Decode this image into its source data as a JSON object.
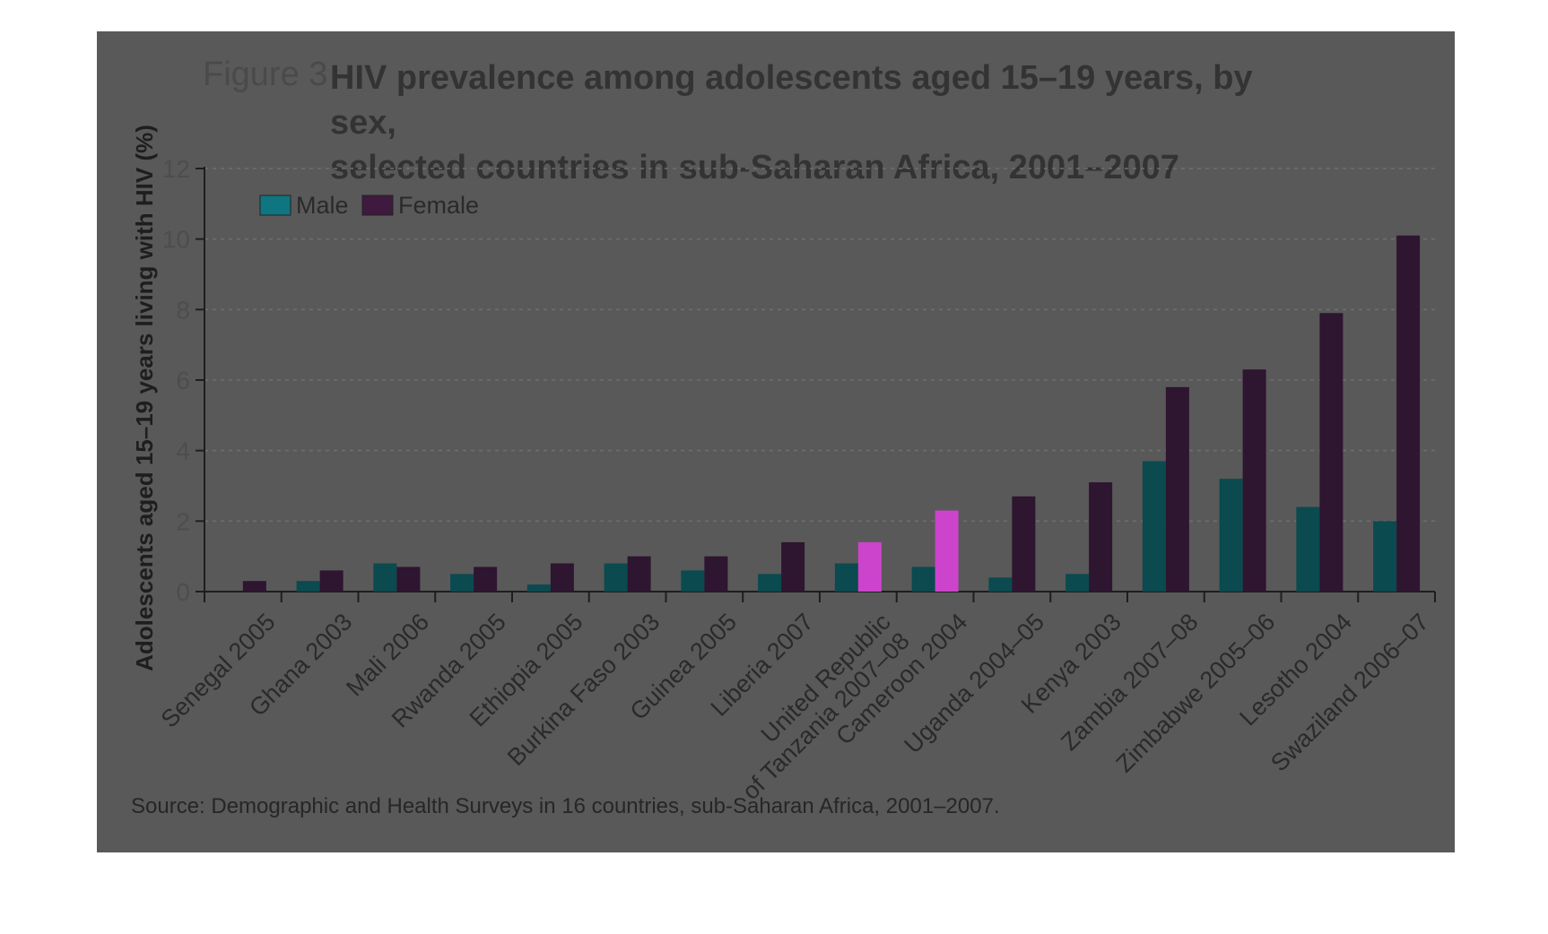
{
  "figure": {
    "number": "Figure 3",
    "title_line1": "HIV prevalence among adolescents aged 15–19 years, by sex,",
    "title_line2": "selected countries in sub-Saharan Africa, 2001–2007",
    "source": "Source: Demographic and Health Surveys in 16 countries, sub-Saharan Africa, 2001–2007."
  },
  "colors": {
    "male": "#0b4a4f",
    "female": "#2e1530",
    "male_legend": "#0f7580",
    "female_legend": "#3d1a3e",
    "highlight": "#cc44cc",
    "panel": "#595959",
    "axis": "#1e1e1e",
    "grid": "#6f6f6f"
  },
  "chart_data": {
    "type": "bar",
    "ylabel": "Adolescents aged 15–19 years living with HIV (%)",
    "xlabel": "",
    "ylim": [
      0,
      12
    ],
    "yticks": [
      0,
      2,
      4,
      6,
      8,
      10,
      12
    ],
    "grid": true,
    "legend_position": "top-left",
    "categories": [
      [
        "Senegal 2005"
      ],
      [
        "Ghana 2003"
      ],
      [
        "Mali 2006"
      ],
      [
        "Rwanda 2005"
      ],
      [
        "Ethiopia 2005"
      ],
      [
        "Burkina Faso 2003"
      ],
      [
        "Guinea 2005"
      ],
      [
        "Liberia 2007"
      ],
      [
        "United Republic",
        "of Tanzania 2007–08"
      ],
      [
        "Cameroon 2004"
      ],
      [
        "Uganda 2004–05"
      ],
      [
        "Kenya 2003"
      ],
      [
        "Zambia 2007–08"
      ],
      [
        "Zimbabwe 2005–06"
      ],
      [
        "Lesotho 2004"
      ],
      [
        "Swaziland 2006–07"
      ]
    ],
    "series": [
      {
        "name": "Male",
        "values": [
          0.0,
          0.3,
          0.8,
          0.5,
          0.2,
          0.8,
          0.6,
          0.5,
          0.8,
          0.7,
          0.4,
          0.5,
          3.7,
          3.2,
          2.4,
          2.0
        ]
      },
      {
        "name": "Female",
        "values": [
          0.3,
          0.6,
          0.7,
          0.7,
          0.8,
          1.0,
          1.0,
          1.4,
          1.4,
          2.3,
          2.7,
          3.1,
          5.8,
          6.3,
          7.9,
          10.1
        ]
      }
    ],
    "highlighted_bars": [
      {
        "series": "Female",
        "category_index": 8
      },
      {
        "series": "Female",
        "category_index": 9
      }
    ]
  }
}
